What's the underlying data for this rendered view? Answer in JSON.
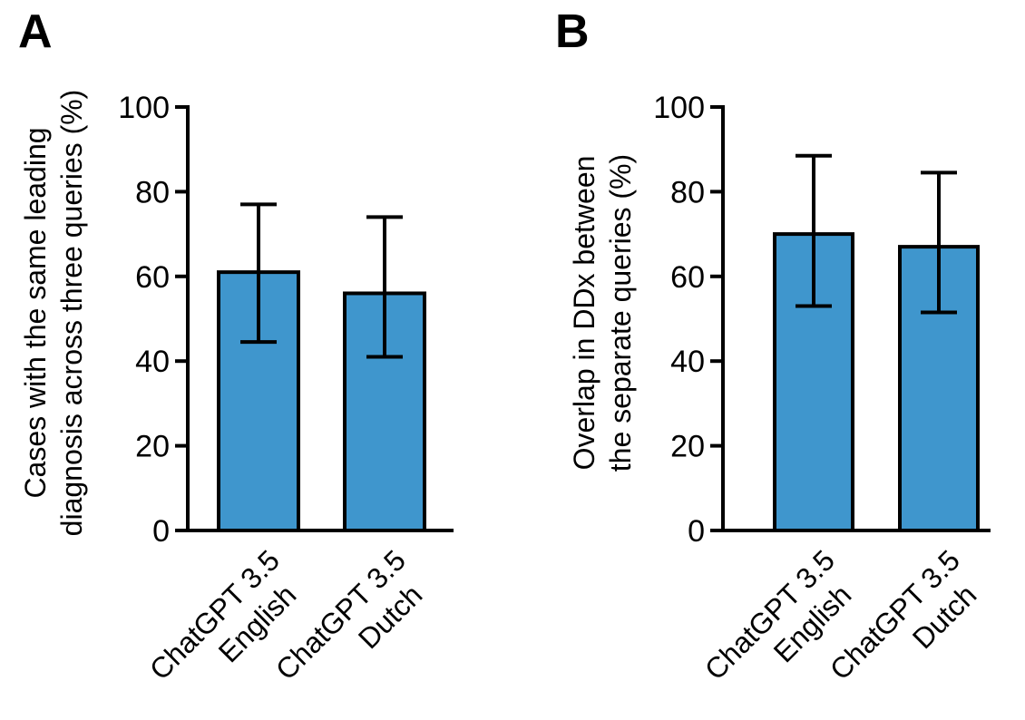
{
  "chart_data": [
    {
      "panel_label": "A",
      "type": "bar",
      "categories": [
        "ChatGPT 3.5\nEnglish",
        "ChatGPT 3.5\nDutch"
      ],
      "values": [
        61,
        56
      ],
      "error_high": [
        77,
        74
      ],
      "error_low": [
        44.5,
        41
      ],
      "ylabel": "Cases with the same leading\ndiagnosis across  three queries (%)",
      "ylim": [
        0,
        100
      ],
      "yticks": [
        0,
        20,
        40,
        60,
        80,
        100
      ],
      "bar_color": "#3f96cd",
      "grid": false
    },
    {
      "panel_label": "B",
      "type": "bar",
      "categories": [
        "ChatGPT 3.5\nEnglish",
        "ChatGPT 3.5\nDutch"
      ],
      "values": [
        70,
        67
      ],
      "error_high": [
        88.5,
        84.5
      ],
      "error_low": [
        53,
        51.5
      ],
      "ylabel": "Overlap in DDx between\nthe separate queries (%)",
      "ylim": [
        0,
        100
      ],
      "yticks": [
        0,
        20,
        40,
        60,
        80,
        100
      ],
      "bar_color": "#3f96cd",
      "grid": false
    }
  ]
}
